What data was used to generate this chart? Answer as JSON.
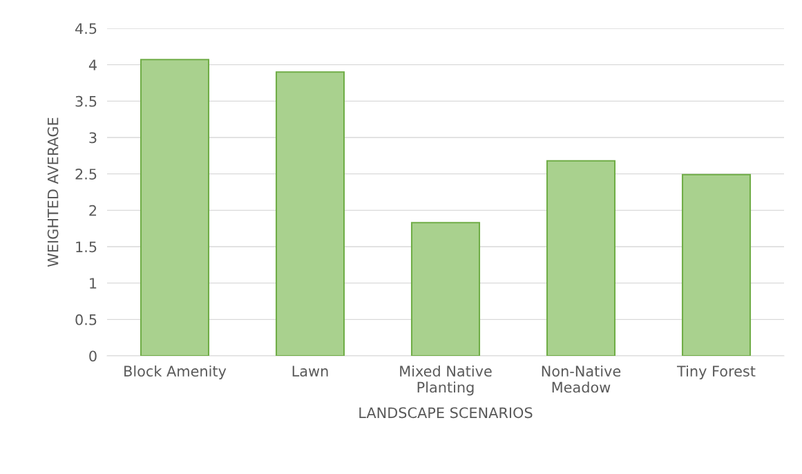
{
  "chart_data": {
    "type": "bar",
    "xlabel": "LANDSCAPE SCENARIOS",
    "ylabel": "WEIGHTED AVERAGE",
    "categories": [
      "Block Amenity",
      "Lawn",
      "Mixed Native\nPlanting",
      "Non-Native\nMeadow",
      "Tiny Forest"
    ],
    "values": [
      4.07,
      3.9,
      1.83,
      2.68,
      2.49
    ],
    "color": "#a9d18e",
    "ylim": [
      0,
      4.5
    ],
    "yticks": [
      0,
      0.5,
      1,
      1.5,
      2,
      2.5,
      3,
      3.5,
      4,
      4.5
    ],
    "grid": "y"
  }
}
